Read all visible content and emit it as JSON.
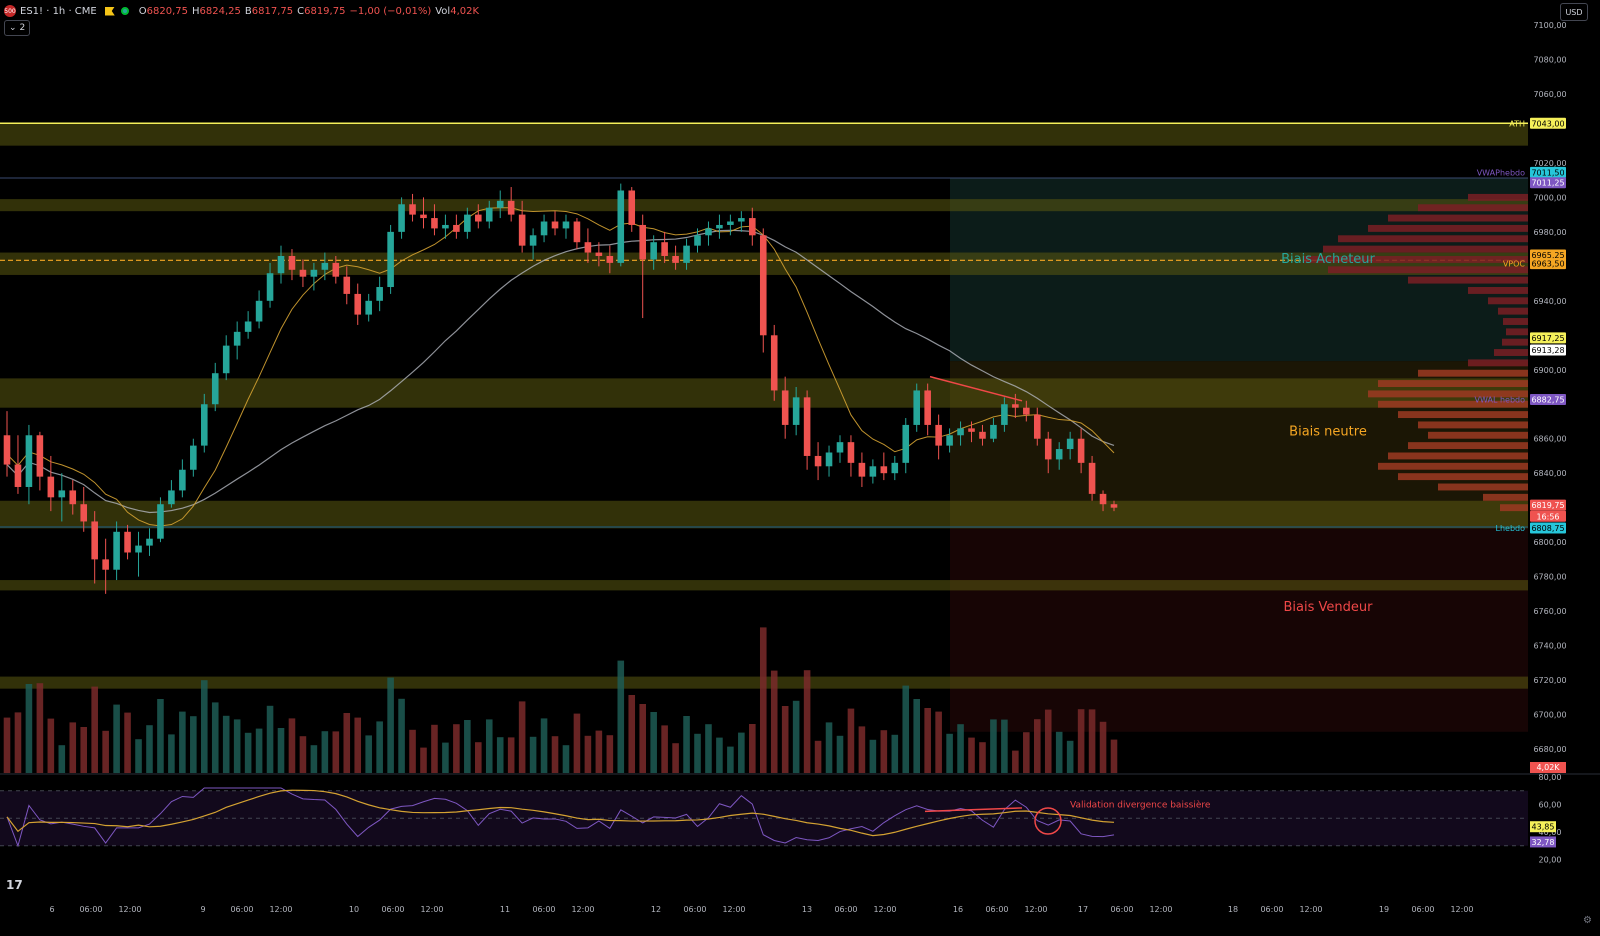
{
  "header": {
    "symbol": "ES1! · 1h · CME",
    "logo_text": "500",
    "o_label": "O",
    "o_value": "6820,75",
    "h_label": "H",
    "h_value": "6824,25",
    "b_label": "B",
    "b_value": "6817,75",
    "c_label": "C",
    "c_value": "6819,75",
    "change": "−1,00 (−0,01%)",
    "vol_label": "Vol",
    "vol_value": "4,02K",
    "collapse_count": "2",
    "currency": "USD"
  },
  "colors": {
    "background": "#000000",
    "up": "#26a69a",
    "down": "#ef5350",
    "zone": "#5b5a10",
    "ath_line": "#f5f05a",
    "vwap_line": "#d4a232",
    "ma_line": "#b2b5be",
    "rsi_line": "#7e57c2",
    "rsi_ma": "#d4a232",
    "annotation_red": "#f04848",
    "biais_acheteur": "#26a69a",
    "biais_neutre": "#f5a623",
    "biais_vendeur": "#f04848"
  },
  "chart_data": {
    "type": "candlestick",
    "title": "",
    "ylim": [
      6668,
      7104
    ],
    "y_ticks": [
      "7100,00",
      "7080,00",
      "7060,00",
      "7020,00",
      "7000,00",
      "6980,00",
      "6940,00",
      "6900,00",
      "6860,00",
      "6840,00",
      "6800,00",
      "6780,00",
      "6760,00",
      "6740,00",
      "6720,00",
      "6700,00",
      "6680,00"
    ],
    "x_ticks": [
      "6",
      "06:00",
      "12:00",
      "9",
      "06:00",
      "12:00",
      "10",
      "06:00",
      "12:00",
      "11",
      "06:00",
      "12:00",
      "12",
      "06:00",
      "12:00",
      "13",
      "06:00",
      "12:00",
      "16",
      "06:00",
      "12:00",
      "17",
      "06:00",
      "12:00",
      "18",
      "06:00",
      "12:00",
      "19",
      "06:00",
      "12:00"
    ],
    "candles": [
      [
        6862,
        6876,
        6838,
        6845
      ],
      [
        6845,
        6862,
        6828,
        6832
      ],
      [
        6832,
        6868,
        6822,
        6862
      ],
      [
        6862,
        6864,
        6830,
        6838
      ],
      [
        6838,
        6850,
        6818,
        6826
      ],
      [
        6826,
        6840,
        6812,
        6830
      ],
      [
        6830,
        6836,
        6816,
        6822
      ],
      [
        6822,
        6832,
        6806,
        6812
      ],
      [
        6812,
        6818,
        6776,
        6790
      ],
      [
        6790,
        6802,
        6770,
        6784
      ],
      [
        6784,
        6812,
        6778,
        6806
      ],
      [
        6806,
        6810,
        6790,
        6794
      ],
      [
        6794,
        6806,
        6780,
        6798
      ],
      [
        6798,
        6808,
        6792,
        6802
      ],
      [
        6802,
        6826,
        6800,
        6822
      ],
      [
        6822,
        6836,
        6820,
        6830
      ],
      [
        6830,
        6848,
        6826,
        6842
      ],
      [
        6842,
        6860,
        6838,
        6856
      ],
      [
        6856,
        6886,
        6852,
        6880
      ],
      [
        6880,
        6904,
        6876,
        6898
      ],
      [
        6898,
        6920,
        6894,
        6914
      ],
      [
        6914,
        6928,
        6906,
        6922
      ],
      [
        6922,
        6934,
        6918,
        6928
      ],
      [
        6928,
        6946,
        6924,
        6940
      ],
      [
        6940,
        6962,
        6936,
        6956
      ],
      [
        6956,
        6972,
        6950,
        6966
      ],
      [
        6966,
        6970,
        6952,
        6958
      ],
      [
        6958,
        6964,
        6948,
        6954
      ],
      [
        6954,
        6962,
        6946,
        6958
      ],
      [
        6958,
        6968,
        6952,
        6962
      ],
      [
        6962,
        6966,
        6950,
        6954
      ],
      [
        6954,
        6960,
        6938,
        6944
      ],
      [
        6944,
        6950,
        6926,
        6932
      ],
      [
        6932,
        6944,
        6928,
        6940
      ],
      [
        6940,
        6954,
        6934,
        6948
      ],
      [
        6948,
        6984,
        6944,
        6980
      ],
      [
        6980,
        7000,
        6976,
        6996
      ],
      [
        6996,
        7002,
        6986,
        6990
      ],
      [
        6990,
        7000,
        6982,
        6988
      ],
      [
        6988,
        6996,
        6978,
        6982
      ],
      [
        6982,
        6990,
        6976,
        6984
      ],
      [
        6984,
        6990,
        6976,
        6980
      ],
      [
        6980,
        6994,
        6976,
        6990
      ],
      [
        6990,
        6996,
        6982,
        6986
      ],
      [
        6986,
        6998,
        6982,
        6994
      ],
      [
        6994,
        7004,
        6988,
        6998
      ],
      [
        6998,
        7006,
        6986,
        6990
      ],
      [
        6990,
        6998,
        6968,
        6972
      ],
      [
        6972,
        6982,
        6964,
        6978
      ],
      [
        6978,
        6990,
        6974,
        6986
      ],
      [
        6986,
        6992,
        6978,
        6982
      ],
      [
        6982,
        6990,
        6976,
        6986
      ],
      [
        6986,
        6988,
        6970,
        6974
      ],
      [
        6974,
        6982,
        6962,
        6968
      ],
      [
        6968,
        6974,
        6960,
        6966
      ],
      [
        6966,
        6972,
        6956,
        6962
      ],
      [
        6962,
        7008,
        6960,
        7004
      ],
      [
        7004,
        7006,
        6980,
        6984
      ],
      [
        6984,
        6990,
        6930,
        6964
      ],
      [
        6964,
        6978,
        6958,
        6974
      ],
      [
        6974,
        6980,
        6962,
        6966
      ],
      [
        6966,
        6972,
        6958,
        6962
      ],
      [
        6962,
        6976,
        6958,
        6972
      ],
      [
        6972,
        6982,
        6968,
        6978
      ],
      [
        6978,
        6986,
        6972,
        6982
      ],
      [
        6982,
        6990,
        6976,
        6984
      ],
      [
        6984,
        6990,
        6978,
        6986
      ],
      [
        6986,
        6992,
        6980,
        6988
      ],
      [
        6988,
        6994,
        6972,
        6978
      ],
      [
        6978,
        6982,
        6910,
        6920
      ],
      [
        6920,
        6926,
        6882,
        6888
      ],
      [
        6888,
        6896,
        6860,
        6868
      ],
      [
        6868,
        6890,
        6862,
        6884
      ],
      [
        6884,
        6888,
        6842,
        6850
      ],
      [
        6850,
        6858,
        6836,
        6844
      ],
      [
        6844,
        6856,
        6838,
        6852
      ],
      [
        6852,
        6862,
        6846,
        6858
      ],
      [
        6858,
        6862,
        6838,
        6846
      ],
      [
        6846,
        6852,
        6832,
        6838
      ],
      [
        6838,
        6848,
        6834,
        6844
      ],
      [
        6844,
        6852,
        6836,
        6840
      ],
      [
        6840,
        6850,
        6836,
        6846
      ],
      [
        6846,
        6872,
        6840,
        6868
      ],
      [
        6868,
        6892,
        6864,
        6888
      ],
      [
        6888,
        6892,
        6862,
        6868
      ],
      [
        6868,
        6874,
        6848,
        6856
      ],
      [
        6856,
        6866,
        6852,
        6862
      ],
      [
        6862,
        6870,
        6856,
        6866
      ],
      [
        6866,
        6870,
        6858,
        6864
      ],
      [
        6864,
        6868,
        6856,
        6860
      ],
      [
        6860,
        6872,
        6858,
        6868
      ],
      [
        6868,
        6884,
        6864,
        6880
      ],
      [
        6880,
        6886,
        6872,
        6878
      ],
      [
        6878,
        6882,
        6870,
        6874
      ],
      [
        6874,
        6878,
        6856,
        6860
      ],
      [
        6860,
        6864,
        6840,
        6848
      ],
      [
        6848,
        6858,
        6842,
        6854
      ],
      [
        6854,
        6864,
        6848,
        6860
      ],
      [
        6860,
        6866,
        6840,
        6846
      ],
      [
        6846,
        6850,
        6824,
        6828
      ],
      [
        6828,
        6830,
        6818,
        6822
      ],
      [
        6822,
        6824,
        6818,
        6820
      ]
    ],
    "horizontal_levels": [
      {
        "label": "ATH",
        "value": "7043,00"
      },
      {
        "label": "VWAPhebdo",
        "value": "7011,50"
      },
      {
        "label": "",
        "value": "7011,25"
      },
      {
        "label": "",
        "value": "6965,25"
      },
      {
        "label": "VPOC",
        "value": "6963,50"
      },
      {
        "label": "",
        "value": "6917,25"
      },
      {
        "label": "",
        "value": "6913,28"
      },
      {
        "label": "VWAL hebdo",
        "value": "6882,75"
      },
      {
        "label": "",
        "value": "6819,75"
      },
      {
        "label": "",
        "value": "16:56"
      },
      {
        "label": "Lhebdo",
        "value": "6808,75"
      }
    ],
    "zones": [
      [
        7030,
        7043
      ],
      [
        6992,
        6999
      ],
      [
        6955,
        6968
      ],
      [
        6878,
        6895
      ],
      [
        6808,
        6824
      ],
      [
        6772,
        6778
      ],
      [
        6715,
        6722
      ]
    ],
    "bias_labels": [
      "Biais Acheteur",
      "Biais neutre",
      "Biais Vendeur"
    ],
    "volume_badge": "4,02K",
    "rsi": {
      "ticks": [
        "80,00",
        "60,00",
        "40,00",
        "20,00"
      ],
      "value_ma": "43,85",
      "value_rsi": "32,78",
      "annotation": "Validation divergence baissière"
    }
  }
}
